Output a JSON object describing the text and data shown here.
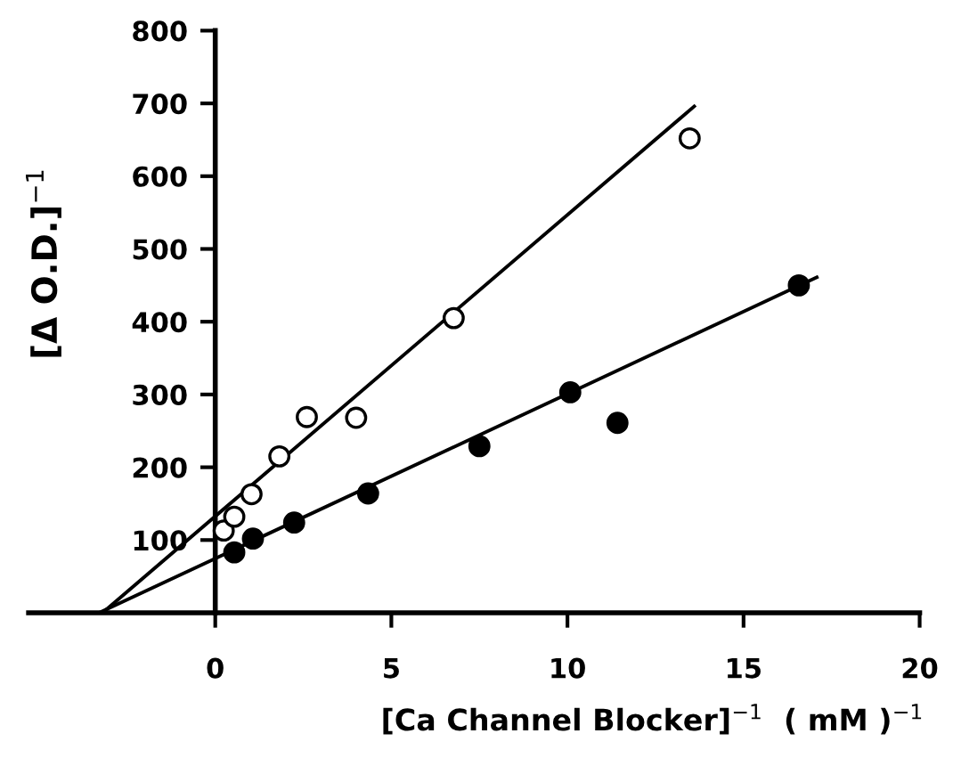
{
  "chart_data": {
    "type": "scatter",
    "xlabel": "[Ca Channel Blocker]$^{−1}$  ( mM )$^{−1}$",
    "ylabel": "[Δ O.D.]$^{−1}$",
    "xlim": [
      -5.3,
      20
    ],
    "ylim": [
      0,
      800
    ],
    "xticks": [
      0,
      5,
      10,
      15,
      20
    ],
    "yticks": [
      100,
      200,
      300,
      400,
      500,
      600,
      700,
      800
    ],
    "grid": false,
    "legend": false,
    "marker": "circle",
    "series": [
      {
        "color": "#ffffff",
        "x": [
          0.24,
          0.54,
          1.03,
          1.82,
          2.6,
          4.0,
          6.77,
          13.47
        ],
        "values": [
          113,
          132,
          163,
          215,
          269,
          268,
          405,
          652
        ]
      },
      {
        "color": "#000000",
        "x": [
          0.54,
          1.07,
          2.24,
          4.34,
          7.5,
          10.08,
          11.42,
          16.57
        ],
        "values": [
          83,
          102,
          124,
          164,
          229,
          303,
          261,
          450
        ]
      },
      {
        "type": "line",
        "color": "#000000",
        "marker": "none",
        "line_style": "solid",
        "x": [
          -3.2,
          13.6
        ],
        "values": [
          0,
          696
        ]
      },
      {
        "type": "line",
        "color": "#000000",
        "marker": "none",
        "line_style": "solid",
        "x": [
          -3.3,
          17.08
        ],
        "values": [
          0,
          461
        ]
      }
    ]
  }
}
